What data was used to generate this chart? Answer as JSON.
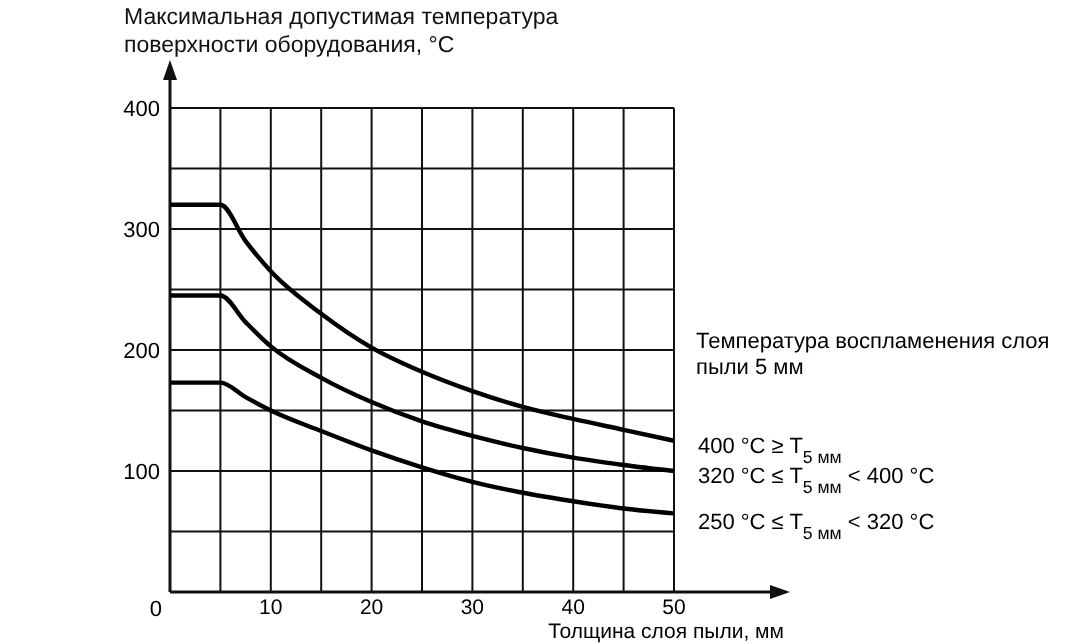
{
  "chart_data": {
    "type": "line",
    "ylabel": "Максимальная допустимая температура поверхности оборудования, °C",
    "xlabel": "Толщина слоя пыли, мм",
    "legend_title": "Температура воспламенения слоя пыли 5 мм",
    "legend": "right",
    "grid": true,
    "marker": "none",
    "line_style": "solid",
    "x": [
      0,
      5,
      7.5,
      10,
      15,
      20,
      25,
      30,
      35,
      40,
      45,
      50
    ],
    "xlim": [
      0,
      50
    ],
    "ylim": [
      0,
      400
    ],
    "xticks": [
      {
        "value": 0,
        "label": null
      },
      {
        "value": 5,
        "label": null
      },
      10,
      {
        "value": 15,
        "label": null
      },
      20,
      {
        "value": 25,
        "label": null
      },
      30,
      {
        "value": 35,
        "label": null
      },
      40,
      {
        "value": 45,
        "label": null
      },
      50
    ],
    "yticks": [
      0,
      {
        "value": 50,
        "label": null
      },
      100,
      {
        "value": 150,
        "label": null
      },
      200,
      {
        "value": 250,
        "label": null
      },
      300,
      {
        "value": 350,
        "label": null
      },
      400
    ],
    "series": [
      {
        "name": "400 °C ≥ T$_{5 мм}$",
        "color": "#000000",
        "values": [
          320,
          320,
          290,
          265,
          230,
          202,
          182,
          166,
          153,
          143,
          134,
          125
        ]
      },
      {
        "name": "320 °C ≤ T$_{5 мм}$ < 400 °C",
        "color": "#000000",
        "values": [
          245,
          245,
          223,
          203,
          177,
          157,
          141,
          129,
          119,
          111,
          105,
          100
        ]
      },
      {
        "name": "250 °C ≤ T$_{5 мм}$ < 320 °C",
        "color": "#000000",
        "values": [
          173,
          173,
          161,
          150,
          133,
          117,
          103,
          91,
          82,
          75,
          69,
          65
        ]
      }
    ]
  }
}
